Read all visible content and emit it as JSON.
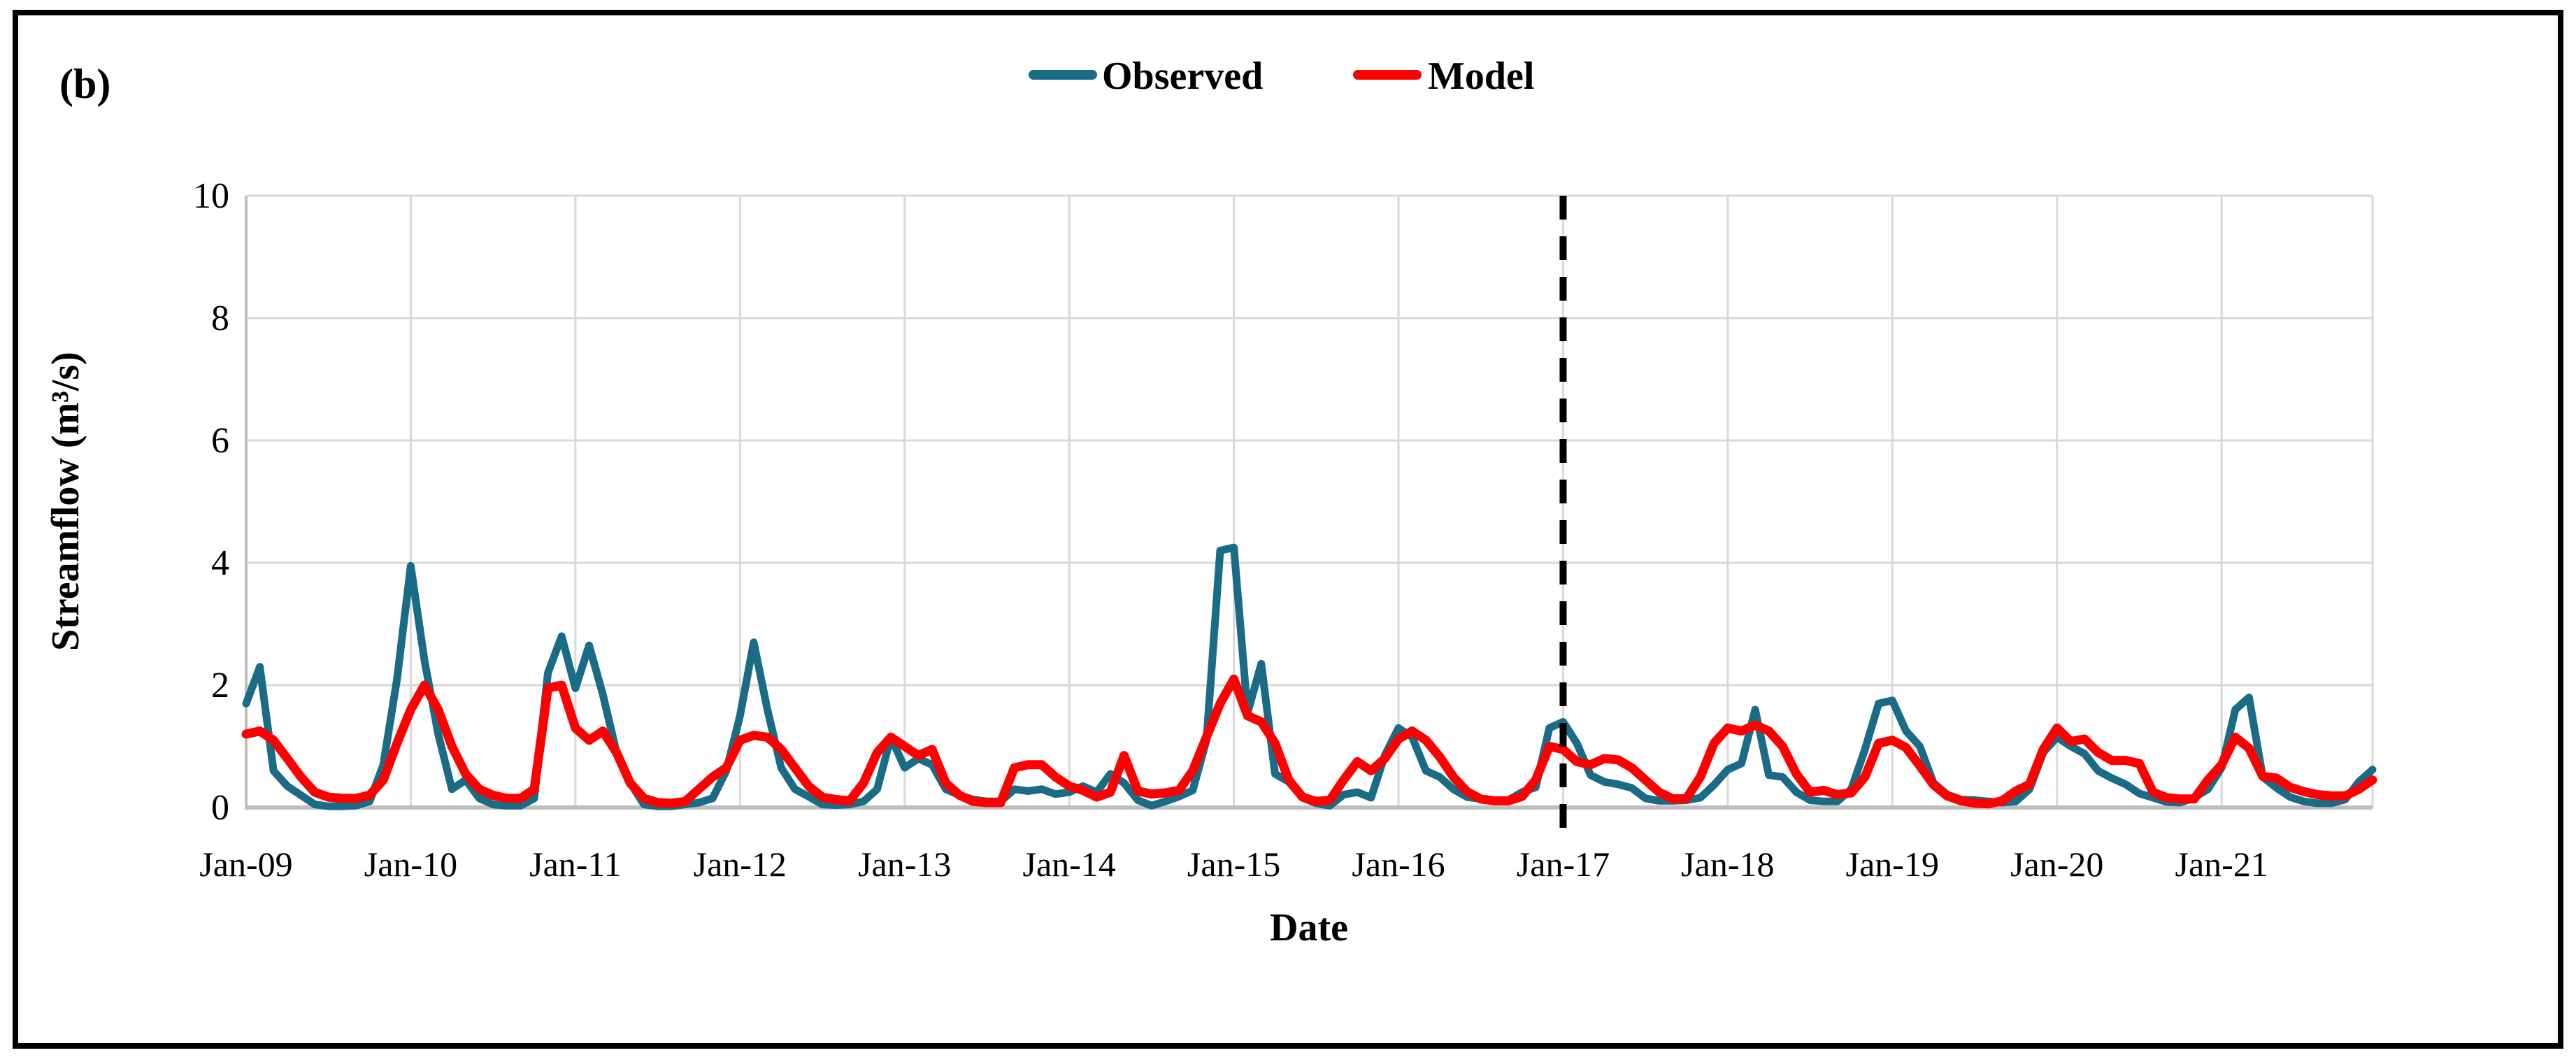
{
  "panel_label": "(b)",
  "legend": {
    "items": [
      {
        "label": "Observed",
        "color": "#1a6b85"
      },
      {
        "label": "Model",
        "color": "#ff0000"
      }
    ],
    "position": "top-center"
  },
  "chart_data": {
    "type": "line",
    "title": "",
    "xlabel": "Date",
    "ylabel": "Streamflow (m³/s)",
    "x_start": "Jan-09",
    "x_end": "Dec-21",
    "x_step": "1 month",
    "x_tick_labels": [
      "Jan-09",
      "Jan-10",
      "Jan-11",
      "Jan-12",
      "Jan-13",
      "Jan-14",
      "Jan-15",
      "Jan-16",
      "Jan-17",
      "Jan-18",
      "Jan-19",
      "Jan-20",
      "Jan-21"
    ],
    "ylim": [
      0,
      10
    ],
    "yticks": [
      0,
      2,
      4,
      6,
      8,
      10
    ],
    "grid": true,
    "legend_position": "top-center",
    "annotations": {
      "dashed_vertical_line_at": "Jan-17",
      "dashed_line_color": "#000000"
    },
    "series": [
      {
        "name": "Observed",
        "color": "#1a6b85",
        "values": [
          1.7,
          2.3,
          0.6,
          0.35,
          0.2,
          0.05,
          0.02,
          0.02,
          0.03,
          0.1,
          0.7,
          2.1,
          3.95,
          2.4,
          1.2,
          0.3,
          0.45,
          0.15,
          0.05,
          0.03,
          0.03,
          0.15,
          2.2,
          2.8,
          1.95,
          2.65,
          1.85,
          0.9,
          0.4,
          0.05,
          0.02,
          0.02,
          0.05,
          0.08,
          0.15,
          0.6,
          1.5,
          2.7,
          1.6,
          0.65,
          0.3,
          0.18,
          0.05,
          0.04,
          0.05,
          0.1,
          0.3,
          1.15,
          0.65,
          0.8,
          0.7,
          0.3,
          0.2,
          0.13,
          0.1,
          0.1,
          0.3,
          0.27,
          0.3,
          0.22,
          0.25,
          0.35,
          0.25,
          0.55,
          0.4,
          0.12,
          0.03,
          0.1,
          0.18,
          0.28,
          1.1,
          4.2,
          4.25,
          1.55,
          2.35,
          0.55,
          0.42,
          0.16,
          0.07,
          0.03,
          0.21,
          0.25,
          0.16,
          0.85,
          1.3,
          1.15,
          0.6,
          0.5,
          0.3,
          0.17,
          0.14,
          0.12,
          0.12,
          0.25,
          0.33,
          1.3,
          1.4,
          1.05,
          0.53,
          0.42,
          0.38,
          0.32,
          0.15,
          0.11,
          0.11,
          0.12,
          0.16,
          0.37,
          0.62,
          0.72,
          1.6,
          0.53,
          0.5,
          0.25,
          0.12,
          0.1,
          0.1,
          0.3,
          0.95,
          1.7,
          1.75,
          1.25,
          1.0,
          0.4,
          0.21,
          0.13,
          0.12,
          0.1,
          0.08,
          0.1,
          0.3,
          0.9,
          1.15,
          1.0,
          0.88,
          0.6,
          0.48,
          0.38,
          0.23,
          0.16,
          0.09,
          0.08,
          0.16,
          0.3,
          0.65,
          1.6,
          1.8,
          0.5,
          0.32,
          0.17,
          0.1,
          0.07,
          0.07,
          0.13,
          0.42,
          0.62
        ]
      },
      {
        "name": "Model",
        "color": "#ff0000",
        "values": [
          1.2,
          1.25,
          1.1,
          0.8,
          0.5,
          0.25,
          0.17,
          0.15,
          0.15,
          0.2,
          0.45,
          1.05,
          1.6,
          2.0,
          1.6,
          1.0,
          0.55,
          0.3,
          0.2,
          0.15,
          0.15,
          0.3,
          1.95,
          2.0,
          1.3,
          1.1,
          1.25,
          0.9,
          0.4,
          0.15,
          0.08,
          0.07,
          0.1,
          0.3,
          0.5,
          0.65,
          1.1,
          1.18,
          1.15,
          0.95,
          0.65,
          0.35,
          0.17,
          0.13,
          0.11,
          0.4,
          0.9,
          1.15,
          1.0,
          0.85,
          0.95,
          0.4,
          0.2,
          0.1,
          0.08,
          0.08,
          0.65,
          0.7,
          0.7,
          0.5,
          0.35,
          0.28,
          0.17,
          0.25,
          0.85,
          0.27,
          0.22,
          0.24,
          0.28,
          0.6,
          1.15,
          1.7,
          2.1,
          1.5,
          1.4,
          1.05,
          0.45,
          0.17,
          0.1,
          0.12,
          0.45,
          0.75,
          0.6,
          0.8,
          1.12,
          1.25,
          1.1,
          0.83,
          0.5,
          0.26,
          0.14,
          0.11,
          0.11,
          0.18,
          0.45,
          1.0,
          0.95,
          0.75,
          0.7,
          0.8,
          0.78,
          0.65,
          0.45,
          0.25,
          0.14,
          0.15,
          0.5,
          1.05,
          1.3,
          1.25,
          1.35,
          1.25,
          1.0,
          0.55,
          0.25,
          0.28,
          0.21,
          0.24,
          0.5,
          1.05,
          1.1,
          0.98,
          0.68,
          0.37,
          0.19,
          0.11,
          0.07,
          0.06,
          0.11,
          0.27,
          0.38,
          0.95,
          1.3,
          1.08,
          1.12,
          0.9,
          0.77,
          0.77,
          0.72,
          0.25,
          0.16,
          0.14,
          0.14,
          0.45,
          0.7,
          1.15,
          0.97,
          0.51,
          0.48,
          0.33,
          0.26,
          0.21,
          0.19,
          0.19,
          0.3,
          0.45
        ]
      }
    ]
  },
  "colors": {
    "grid": "#d9d9d9",
    "axis": "#bfbfbf",
    "border": "#000000",
    "background": "#ffffff"
  }
}
